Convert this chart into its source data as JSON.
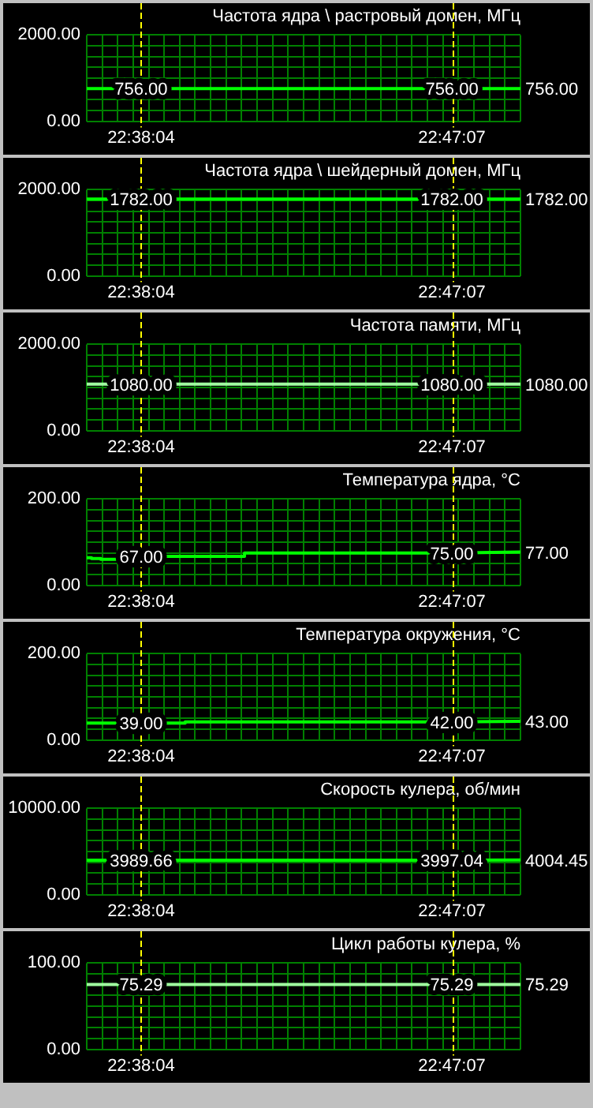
{
  "chart_data": [
    {
      "type": "line",
      "title": "Частота ядра \\ растровый домен, МГц",
      "x": [
        22.608,
        22.6344,
        22.7853,
        22.8186
      ],
      "values": [
        756,
        756,
        756,
        756
      ],
      "value_labels": [
        null,
        "756.00",
        "756.00",
        "756.00"
      ],
      "color": "#00ff00",
      "xlim": [
        22.608,
        22.8186
      ],
      "xticks": [
        {
          "value": 22.608,
          "label": null
        },
        {
          "value": 22.6155,
          "label": null
        },
        {
          "value": 22.623,
          "label": null
        },
        {
          "value": 22.6306,
          "label": null
        },
        {
          "value": 22.6344,
          "label": "22:38:04"
        },
        {
          "value": 22.6381,
          "label": null
        },
        {
          "value": 22.6456,
          "label": null
        },
        {
          "value": 22.6531,
          "label": null
        },
        {
          "value": 22.6606,
          "label": null
        },
        {
          "value": 22.6682,
          "label": null
        },
        {
          "value": 22.6757,
          "label": null
        },
        {
          "value": 22.6832,
          "label": null
        },
        {
          "value": 22.6907,
          "label": null
        },
        {
          "value": 22.6982,
          "label": null
        },
        {
          "value": 22.7058,
          "label": null
        },
        {
          "value": 22.7133,
          "label": null
        },
        {
          "value": 22.7208,
          "label": null
        },
        {
          "value": 22.7283,
          "label": null
        },
        {
          "value": 22.7358,
          "label": null
        },
        {
          "value": 22.7434,
          "label": null
        },
        {
          "value": 22.7509,
          "label": null
        },
        {
          "value": 22.7584,
          "label": null
        },
        {
          "value": 22.7659,
          "label": null
        },
        {
          "value": 22.7734,
          "label": null
        },
        {
          "value": 22.781,
          "label": null
        },
        {
          "value": 22.7853,
          "label": "22:47:07"
        },
        {
          "value": 22.7885,
          "label": null
        },
        {
          "value": 22.796,
          "label": null
        },
        {
          "value": 22.8035,
          "label": null
        },
        {
          "value": 22.811,
          "label": null
        },
        {
          "value": 22.8186,
          "label": null
        }
      ],
      "ylim": [
        0,
        2000
      ],
      "yticks": [
        {
          "value": 0,
          "label": "0.00"
        },
        {
          "value": 250,
          "label": null
        },
        {
          "value": 500,
          "label": null
        },
        {
          "value": 750,
          "label": null
        },
        {
          "value": 1000,
          "label": null
        },
        {
          "value": 1250,
          "label": null
        },
        {
          "value": 1500,
          "label": null
        },
        {
          "value": 1750,
          "label": null
        },
        {
          "value": 2000,
          "label": "2000.00"
        }
      ],
      "grid": true,
      "legend": false,
      "marker": "none"
    },
    {
      "type": "line",
      "title": "Частота ядра \\ шейдерный домен, МГц",
      "x": [
        22.608,
        22.6344,
        22.7853,
        22.8186
      ],
      "values": [
        1782,
        1782,
        1782,
        1782
      ],
      "value_labels": [
        null,
        "1782.00",
        "1782.00",
        "1782.00"
      ],
      "color": "#00ff00",
      "xlim": [
        22.608,
        22.8186
      ],
      "xticks": [
        {
          "value": 22.608,
          "label": null
        },
        {
          "value": 22.6155,
          "label": null
        },
        {
          "value": 22.623,
          "label": null
        },
        {
          "value": 22.6306,
          "label": null
        },
        {
          "value": 22.6344,
          "label": "22:38:04"
        },
        {
          "value": 22.6381,
          "label": null
        },
        {
          "value": 22.6456,
          "label": null
        },
        {
          "value": 22.6531,
          "label": null
        },
        {
          "value": 22.6606,
          "label": null
        },
        {
          "value": 22.6682,
          "label": null
        },
        {
          "value": 22.6757,
          "label": null
        },
        {
          "value": 22.6832,
          "label": null
        },
        {
          "value": 22.6907,
          "label": null
        },
        {
          "value": 22.6982,
          "label": null
        },
        {
          "value": 22.7058,
          "label": null
        },
        {
          "value": 22.7133,
          "label": null
        },
        {
          "value": 22.7208,
          "label": null
        },
        {
          "value": 22.7283,
          "label": null
        },
        {
          "value": 22.7358,
          "label": null
        },
        {
          "value": 22.7434,
          "label": null
        },
        {
          "value": 22.7509,
          "label": null
        },
        {
          "value": 22.7584,
          "label": null
        },
        {
          "value": 22.7659,
          "label": null
        },
        {
          "value": 22.7734,
          "label": null
        },
        {
          "value": 22.781,
          "label": null
        },
        {
          "value": 22.7853,
          "label": "22:47:07"
        },
        {
          "value": 22.7885,
          "label": null
        },
        {
          "value": 22.796,
          "label": null
        },
        {
          "value": 22.8035,
          "label": null
        },
        {
          "value": 22.811,
          "label": null
        },
        {
          "value": 22.8186,
          "label": null
        }
      ],
      "ylim": [
        0,
        2000
      ],
      "yticks": [
        {
          "value": 0,
          "label": "0.00"
        },
        {
          "value": 250,
          "label": null
        },
        {
          "value": 500,
          "label": null
        },
        {
          "value": 750,
          "label": null
        },
        {
          "value": 1000,
          "label": null
        },
        {
          "value": 1250,
          "label": null
        },
        {
          "value": 1500,
          "label": null
        },
        {
          "value": 1750,
          "label": null
        },
        {
          "value": 2000,
          "label": "2000.00"
        }
      ],
      "grid": true,
      "legend": false,
      "marker": "none"
    },
    {
      "type": "line",
      "title": "Частота памяти, МГц",
      "x": [
        22.608,
        22.6344,
        22.7853,
        22.8186
      ],
      "values": [
        1080,
        1080,
        1080,
        1080
      ],
      "value_labels": [
        null,
        "1080.00",
        "1080.00",
        "1080.00"
      ],
      "color": "#a0ffa0",
      "xlim": [
        22.608,
        22.8186
      ],
      "xticks": [
        {
          "value": 22.608,
          "label": null
        },
        {
          "value": 22.6155,
          "label": null
        },
        {
          "value": 22.623,
          "label": null
        },
        {
          "value": 22.6306,
          "label": null
        },
        {
          "value": 22.6344,
          "label": "22:38:04"
        },
        {
          "value": 22.6381,
          "label": null
        },
        {
          "value": 22.6456,
          "label": null
        },
        {
          "value": 22.6531,
          "label": null
        },
        {
          "value": 22.6606,
          "label": null
        },
        {
          "value": 22.6682,
          "label": null
        },
        {
          "value": 22.6757,
          "label": null
        },
        {
          "value": 22.6832,
          "label": null
        },
        {
          "value": 22.6907,
          "label": null
        },
        {
          "value": 22.6982,
          "label": null
        },
        {
          "value": 22.7058,
          "label": null
        },
        {
          "value": 22.7133,
          "label": null
        },
        {
          "value": 22.7208,
          "label": null
        },
        {
          "value": 22.7283,
          "label": null
        },
        {
          "value": 22.7358,
          "label": null
        },
        {
          "value": 22.7434,
          "label": null
        },
        {
          "value": 22.7509,
          "label": null
        },
        {
          "value": 22.7584,
          "label": null
        },
        {
          "value": 22.7659,
          "label": null
        },
        {
          "value": 22.7734,
          "label": null
        },
        {
          "value": 22.781,
          "label": null
        },
        {
          "value": 22.7853,
          "label": "22:47:07"
        },
        {
          "value": 22.7885,
          "label": null
        },
        {
          "value": 22.796,
          "label": null
        },
        {
          "value": 22.8035,
          "label": null
        },
        {
          "value": 22.811,
          "label": null
        },
        {
          "value": 22.8186,
          "label": null
        }
      ],
      "ylim": [
        0,
        2000
      ],
      "yticks": [
        {
          "value": 0,
          "label": "0.00"
        },
        {
          "value": 250,
          "label": null
        },
        {
          "value": 500,
          "label": null
        },
        {
          "value": 750,
          "label": null
        },
        {
          "value": 1000,
          "label": null
        },
        {
          "value": 1250,
          "label": null
        },
        {
          "value": 1500,
          "label": null
        },
        {
          "value": 1750,
          "label": null
        },
        {
          "value": 2000,
          "label": "2000.00"
        }
      ],
      "grid": true,
      "legend": false,
      "marker": "none"
    },
    {
      "type": "line",
      "title": "Температура ядра, °С",
      "x": [
        22.608,
        22.6103,
        22.6103,
        22.6148,
        22.6148,
        22.6232,
        22.6232,
        22.6344,
        22.6846,
        22.6846,
        22.7853,
        22.8186
      ],
      "values": [
        64,
        64,
        62,
        62,
        60,
        60,
        67,
        67,
        67,
        75,
        75,
        77
      ],
      "value_labels": [
        null,
        null,
        null,
        null,
        null,
        null,
        null,
        "67.00",
        null,
        null,
        "75.00",
        "77.00"
      ],
      "color": "#00ff00",
      "xlim": [
        22.608,
        22.8186
      ],
      "xticks": [
        {
          "value": 22.608,
          "label": null
        },
        {
          "value": 22.6155,
          "label": null
        },
        {
          "value": 22.623,
          "label": null
        },
        {
          "value": 22.6306,
          "label": null
        },
        {
          "value": 22.6344,
          "label": "22:38:04"
        },
        {
          "value": 22.6381,
          "label": null
        },
        {
          "value": 22.6456,
          "label": null
        },
        {
          "value": 22.6531,
          "label": null
        },
        {
          "value": 22.6606,
          "label": null
        },
        {
          "value": 22.6682,
          "label": null
        },
        {
          "value": 22.6757,
          "label": null
        },
        {
          "value": 22.6832,
          "label": null
        },
        {
          "value": 22.6907,
          "label": null
        },
        {
          "value": 22.6982,
          "label": null
        },
        {
          "value": 22.7058,
          "label": null
        },
        {
          "value": 22.7133,
          "label": null
        },
        {
          "value": 22.7208,
          "label": null
        },
        {
          "value": 22.7283,
          "label": null
        },
        {
          "value": 22.7358,
          "label": null
        },
        {
          "value": 22.7434,
          "label": null
        },
        {
          "value": 22.7509,
          "label": null
        },
        {
          "value": 22.7584,
          "label": null
        },
        {
          "value": 22.7659,
          "label": null
        },
        {
          "value": 22.7734,
          "label": null
        },
        {
          "value": 22.781,
          "label": null
        },
        {
          "value": 22.7853,
          "label": "22:47:07"
        },
        {
          "value": 22.7885,
          "label": null
        },
        {
          "value": 22.796,
          "label": null
        },
        {
          "value": 22.8035,
          "label": null
        },
        {
          "value": 22.811,
          "label": null
        },
        {
          "value": 22.8186,
          "label": null
        }
      ],
      "ylim": [
        0,
        200
      ],
      "yticks": [
        {
          "value": 0,
          "label": "0.00"
        },
        {
          "value": 25,
          "label": null
        },
        {
          "value": 50,
          "label": null
        },
        {
          "value": 75,
          "label": null
        },
        {
          "value": 100,
          "label": null
        },
        {
          "value": 125,
          "label": null
        },
        {
          "value": 150,
          "label": null
        },
        {
          "value": 175,
          "label": null
        },
        {
          "value": 200,
          "label": "200.00"
        }
      ],
      "grid": true,
      "legend": false,
      "marker": "none"
    },
    {
      "type": "line",
      "title": "Температура окружения, °С",
      "x": [
        22.608,
        22.6344,
        22.6558,
        22.6558,
        22.7853,
        22.8186
      ],
      "values": [
        39,
        39,
        39,
        42,
        42,
        43
      ],
      "value_labels": [
        null,
        "39.00",
        null,
        null,
        "42.00",
        "43.00"
      ],
      "color": "#00ff00",
      "xlim": [
        22.608,
        22.8186
      ],
      "xticks": [
        {
          "value": 22.608,
          "label": null
        },
        {
          "value": 22.6155,
          "label": null
        },
        {
          "value": 22.623,
          "label": null
        },
        {
          "value": 22.6306,
          "label": null
        },
        {
          "value": 22.6344,
          "label": "22:38:04"
        },
        {
          "value": 22.6381,
          "label": null
        },
        {
          "value": 22.6456,
          "label": null
        },
        {
          "value": 22.6531,
          "label": null
        },
        {
          "value": 22.6606,
          "label": null
        },
        {
          "value": 22.6682,
          "label": null
        },
        {
          "value": 22.6757,
          "label": null
        },
        {
          "value": 22.6832,
          "label": null
        },
        {
          "value": 22.6907,
          "label": null
        },
        {
          "value": 22.6982,
          "label": null
        },
        {
          "value": 22.7058,
          "label": null
        },
        {
          "value": 22.7133,
          "label": null
        },
        {
          "value": 22.7208,
          "label": null
        },
        {
          "value": 22.7283,
          "label": null
        },
        {
          "value": 22.7358,
          "label": null
        },
        {
          "value": 22.7434,
          "label": null
        },
        {
          "value": 22.7509,
          "label": null
        },
        {
          "value": 22.7584,
          "label": null
        },
        {
          "value": 22.7659,
          "label": null
        },
        {
          "value": 22.7734,
          "label": null
        },
        {
          "value": 22.781,
          "label": null
        },
        {
          "value": 22.7853,
          "label": "22:47:07"
        },
        {
          "value": 22.7885,
          "label": null
        },
        {
          "value": 22.796,
          "label": null
        },
        {
          "value": 22.8035,
          "label": null
        },
        {
          "value": 22.811,
          "label": null
        },
        {
          "value": 22.8186,
          "label": null
        }
      ],
      "ylim": [
        0,
        200
      ],
      "yticks": [
        {
          "value": 0,
          "label": "0.00"
        },
        {
          "value": 25,
          "label": null
        },
        {
          "value": 50,
          "label": null
        },
        {
          "value": 75,
          "label": null
        },
        {
          "value": 100,
          "label": null
        },
        {
          "value": 125,
          "label": null
        },
        {
          "value": 150,
          "label": null
        },
        {
          "value": 175,
          "label": null
        },
        {
          "value": 200,
          "label": "200.00"
        }
      ],
      "grid": true,
      "legend": false,
      "marker": "none"
    },
    {
      "type": "line",
      "title": "Скорость кулера, об/мин",
      "x": [
        22.608,
        22.6344,
        22.7853,
        22.8186
      ],
      "values": [
        3989.66,
        3989.66,
        3997.04,
        4004.45
      ],
      "value_labels": [
        null,
        "3989.66",
        "3997.04",
        "4004.45"
      ],
      "color": "#00ff00",
      "xlim": [
        22.608,
        22.8186
      ],
      "xticks": [
        {
          "value": 22.608,
          "label": null
        },
        {
          "value": 22.6155,
          "label": null
        },
        {
          "value": 22.623,
          "label": null
        },
        {
          "value": 22.6306,
          "label": null
        },
        {
          "value": 22.6344,
          "label": "22:38:04"
        },
        {
          "value": 22.6381,
          "label": null
        },
        {
          "value": 22.6456,
          "label": null
        },
        {
          "value": 22.6531,
          "label": null
        },
        {
          "value": 22.6606,
          "label": null
        },
        {
          "value": 22.6682,
          "label": null
        },
        {
          "value": 22.6757,
          "label": null
        },
        {
          "value": 22.6832,
          "label": null
        },
        {
          "value": 22.6907,
          "label": null
        },
        {
          "value": 22.6982,
          "label": null
        },
        {
          "value": 22.7058,
          "label": null
        },
        {
          "value": 22.7133,
          "label": null
        },
        {
          "value": 22.7208,
          "label": null
        },
        {
          "value": 22.7283,
          "label": null
        },
        {
          "value": 22.7358,
          "label": null
        },
        {
          "value": 22.7434,
          "label": null
        },
        {
          "value": 22.7509,
          "label": null
        },
        {
          "value": 22.7584,
          "label": null
        },
        {
          "value": 22.7659,
          "label": null
        },
        {
          "value": 22.7734,
          "label": null
        },
        {
          "value": 22.781,
          "label": null
        },
        {
          "value": 22.7853,
          "label": "22:47:07"
        },
        {
          "value": 22.7885,
          "label": null
        },
        {
          "value": 22.796,
          "label": null
        },
        {
          "value": 22.8035,
          "label": null
        },
        {
          "value": 22.811,
          "label": null
        },
        {
          "value": 22.8186,
          "label": null
        }
      ],
      "ylim": [
        0,
        10000
      ],
      "yticks": [
        {
          "value": 0,
          "label": "0.00"
        },
        {
          "value": 1250,
          "label": null
        },
        {
          "value": 2500,
          "label": null
        },
        {
          "value": 3750,
          "label": null
        },
        {
          "value": 5000,
          "label": null
        },
        {
          "value": 6250,
          "label": null
        },
        {
          "value": 7500,
          "label": null
        },
        {
          "value": 8750,
          "label": null
        },
        {
          "value": 10000,
          "label": "10000.00"
        }
      ],
      "grid": true,
      "legend": false,
      "marker": "none"
    },
    {
      "type": "line",
      "title": "Цикл работы кулера, %",
      "x": [
        22.608,
        22.6344,
        22.7853,
        22.8186
      ],
      "values": [
        75.29,
        75.29,
        75.29,
        75.29
      ],
      "value_labels": [
        null,
        "75.29",
        "75.29",
        "75.29"
      ],
      "color": "#a0ffa0",
      "xlim": [
        22.608,
        22.8186
      ],
      "xticks": [
        {
          "value": 22.608,
          "label": null
        },
        {
          "value": 22.6155,
          "label": null
        },
        {
          "value": 22.623,
          "label": null
        },
        {
          "value": 22.6306,
          "label": null
        },
        {
          "value": 22.6344,
          "label": "22:38:04"
        },
        {
          "value": 22.6381,
          "label": null
        },
        {
          "value": 22.6456,
          "label": null
        },
        {
          "value": 22.6531,
          "label": null
        },
        {
          "value": 22.6606,
          "label": null
        },
        {
          "value": 22.6682,
          "label": null
        },
        {
          "value": 22.6757,
          "label": null
        },
        {
          "value": 22.6832,
          "label": null
        },
        {
          "value": 22.6907,
          "label": null
        },
        {
          "value": 22.6982,
          "label": null
        },
        {
          "value": 22.7058,
          "label": null
        },
        {
          "value": 22.7133,
          "label": null
        },
        {
          "value": 22.7208,
          "label": null
        },
        {
          "value": 22.7283,
          "label": null
        },
        {
          "value": 22.7358,
          "label": null
        },
        {
          "value": 22.7434,
          "label": null
        },
        {
          "value": 22.7509,
          "label": null
        },
        {
          "value": 22.7584,
          "label": null
        },
        {
          "value": 22.7659,
          "label": null
        },
        {
          "value": 22.7734,
          "label": null
        },
        {
          "value": 22.781,
          "label": null
        },
        {
          "value": 22.7853,
          "label": "22:47:07"
        },
        {
          "value": 22.7885,
          "label": null
        },
        {
          "value": 22.796,
          "label": null
        },
        {
          "value": 22.8035,
          "label": null
        },
        {
          "value": 22.811,
          "label": null
        },
        {
          "value": 22.8186,
          "label": null
        }
      ],
      "ylim": [
        0,
        100
      ],
      "yticks": [
        {
          "value": 0,
          "label": "0.00"
        },
        {
          "value": 12.5,
          "label": null
        },
        {
          "value": 25,
          "label": null
        },
        {
          "value": 37.5,
          "label": null
        },
        {
          "value": 50,
          "label": null
        },
        {
          "value": 62.5,
          "label": null
        },
        {
          "value": 75,
          "label": null
        },
        {
          "value": 87.5,
          "label": null
        },
        {
          "value": 100,
          "label": "100.00"
        }
      ],
      "grid": true,
      "legend": false,
      "marker": "none"
    }
  ]
}
